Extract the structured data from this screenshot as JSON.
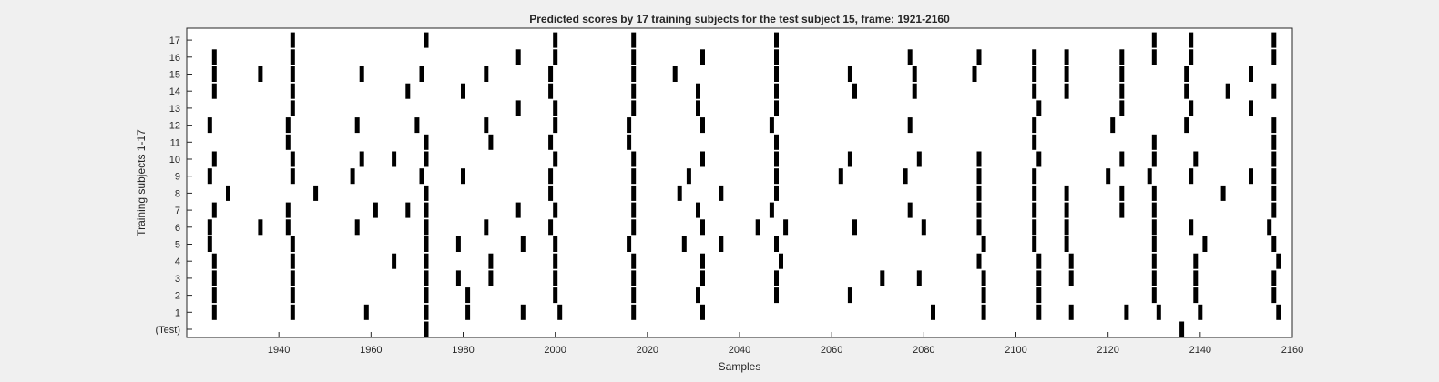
{
  "chart_data": {
    "type": "scatter",
    "title": "Predicted scores by 17 training subjects for the test subject 15, frame: 1921-2160",
    "xlabel": "Samples",
    "ylabel": "Training subjects 1-17",
    "xlim": [
      1920,
      2160
    ],
    "xticks": [
      1940,
      1960,
      1980,
      2000,
      2020,
      2040,
      2060,
      2080,
      2100,
      2120,
      2140,
      2160
    ],
    "rows": [
      "(Test)",
      "1",
      "2",
      "3",
      "4",
      "5",
      "6",
      "7",
      "8",
      "9",
      "10",
      "11",
      "12",
      "13",
      "14",
      "15",
      "16",
      "17"
    ],
    "grid": false,
    "legend": "none",
    "mark_color": "#000000",
    "series": [
      {
        "row": "(Test)",
        "x": [
          1972,
          2136
        ]
      },
      {
        "row": "1",
        "x": [
          1926,
          1943,
          1959,
          1972,
          1981,
          1993,
          2001,
          2017,
          2032,
          2082,
          2093,
          2105,
          2112,
          2124,
          2131,
          2140,
          2157
        ]
      },
      {
        "row": "2",
        "x": [
          1926,
          1943,
          1972,
          1981,
          2000,
          2017,
          2031,
          2048,
          2064,
          2093,
          2105,
          2130,
          2139,
          2156
        ]
      },
      {
        "row": "3",
        "x": [
          1926,
          1943,
          1972,
          1979,
          1986,
          2000,
          2017,
          2032,
          2048,
          2071,
          2079,
          2093,
          2105,
          2112,
          2130,
          2139,
          2156
        ]
      },
      {
        "row": "4",
        "x": [
          1926,
          1943,
          1965,
          1972,
          1986,
          2000,
          2017,
          2032,
          2049,
          2092,
          2105,
          2112,
          2130,
          2139,
          2157
        ]
      },
      {
        "row": "5",
        "x": [
          1925,
          1943,
          1972,
          1979,
          1993,
          2000,
          2016,
          2028,
          2036,
          2048,
          2093,
          2104,
          2111,
          2130,
          2141,
          2156
        ]
      },
      {
        "row": "6",
        "x": [
          1925,
          1936,
          1942,
          1957,
          1972,
          1985,
          1999,
          2017,
          2032,
          2044,
          2050,
          2065,
          2080,
          2092,
          2104,
          2111,
          2130,
          2138,
          2155
        ]
      },
      {
        "row": "7",
        "x": [
          1926,
          1942,
          1961,
          1968,
          1972,
          1992,
          2000,
          2017,
          2031,
          2047,
          2077,
          2092,
          2104,
          2111,
          2123,
          2130,
          2156
        ]
      },
      {
        "row": "8",
        "x": [
          1929,
          1948,
          1972,
          1999,
          2017,
          2027,
          2036,
          2048,
          2092,
          2104,
          2111,
          2123,
          2130,
          2145,
          2156
        ]
      },
      {
        "row": "9",
        "x": [
          1925,
          1943,
          1956,
          1971,
          1980,
          1999,
          2017,
          2029,
          2048,
          2062,
          2076,
          2092,
          2104,
          2120,
          2129,
          2138,
          2151,
          2156
        ]
      },
      {
        "row": "10",
        "x": [
          1926,
          1943,
          1958,
          1965,
          1972,
          2000,
          2017,
          2032,
          2048,
          2064,
          2079,
          2092,
          2105,
          2123,
          2130,
          2139,
          2156
        ]
      },
      {
        "row": "11",
        "x": [
          1942,
          1972,
          1986,
          1999,
          2016,
          2048,
          2104,
          2130,
          2156
        ]
      },
      {
        "row": "12",
        "x": [
          1925,
          1942,
          1957,
          1970,
          1985,
          2000,
          2016,
          2032,
          2047,
          2077,
          2104,
          2121,
          2137,
          2156
        ]
      },
      {
        "row": "13",
        "x": [
          1943,
          1992,
          2000,
          2017,
          2031,
          2048,
          2105,
          2123,
          2138,
          2151
        ]
      },
      {
        "row": "14",
        "x": [
          1926,
          1943,
          1968,
          1980,
          1999,
          2017,
          2031,
          2048,
          2065,
          2078,
          2104,
          2111,
          2123,
          2137,
          2146,
          2156
        ]
      },
      {
        "row": "15",
        "x": [
          1926,
          1936,
          1943,
          1958,
          1971,
          1985,
          1999,
          2017,
          2026,
          2048,
          2064,
          2078,
          2091,
          2104,
          2111,
          2123,
          2137,
          2151
        ]
      },
      {
        "row": "16",
        "x": [
          1926,
          1943,
          1992,
          2000,
          2017,
          2032,
          2048,
          2077,
          2092,
          2104,
          2111,
          2123,
          2130,
          2138,
          2156
        ]
      },
      {
        "row": "17",
        "x": [
          1943,
          1972,
          2000,
          2017,
          2048,
          2130,
          2138,
          2156
        ]
      }
    ]
  }
}
